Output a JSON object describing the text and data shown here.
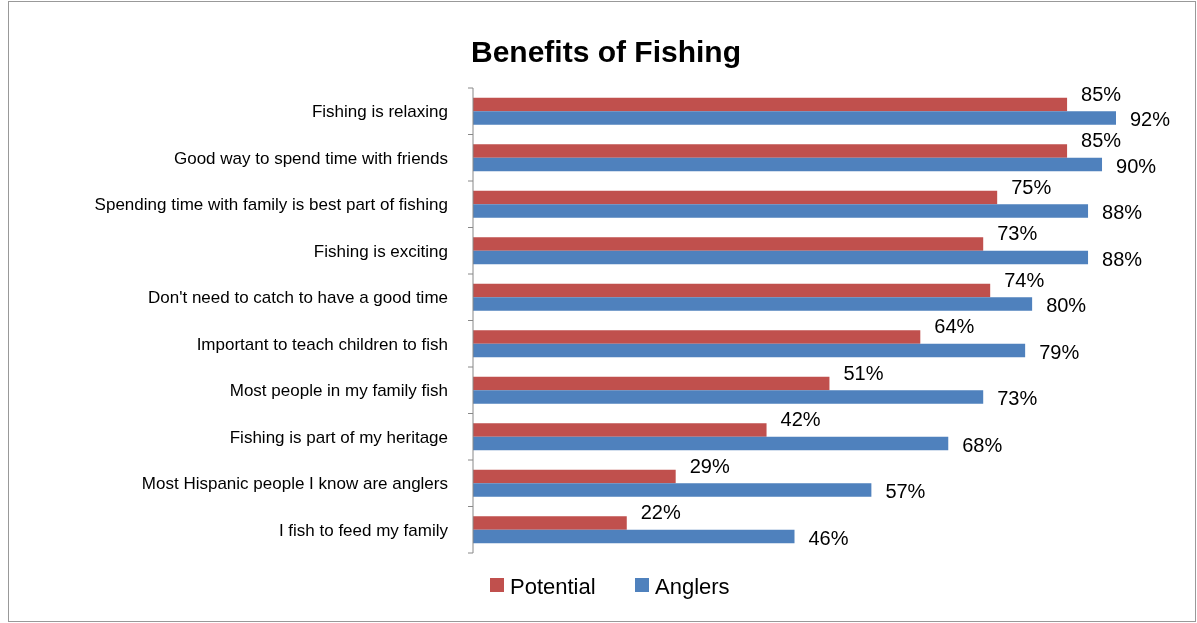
{
  "chart_data": {
    "type": "bar",
    "orientation": "horizontal",
    "title": "Benefits of Fishing",
    "categories": [
      "Fishing is relaxing",
      "Good way to spend time with friends",
      "Spending time with family is best part of fishing",
      "Fishing is exciting",
      "Don't need to catch to have a good time",
      "Important to teach children to fish",
      "Most people in my family fish",
      "Fishing is part of my heritage",
      "Most Hispanic people I know are anglers",
      "I fish to feed my family"
    ],
    "series": [
      {
        "name": "Potential",
        "color": "#c0504d",
        "values": [
          85,
          85,
          75,
          73,
          74,
          64,
          51,
          42,
          29,
          22
        ],
        "value_labels": [
          "85%",
          "85%",
          "75%",
          "73%",
          "74%",
          "64%",
          "51%",
          "42%",
          "29%",
          "22%"
        ]
      },
      {
        "name": "Anglers",
        "color": "#4f81bd",
        "values": [
          92,
          90,
          88,
          88,
          80,
          79,
          73,
          68,
          57,
          46
        ],
        "value_labels": [
          "92%",
          "90%",
          "88%",
          "88%",
          "80%",
          "79%",
          "73%",
          "68%",
          "57%",
          "46%"
        ]
      }
    ],
    "tick_labels": "y",
    "legend": "bottom"
  }
}
